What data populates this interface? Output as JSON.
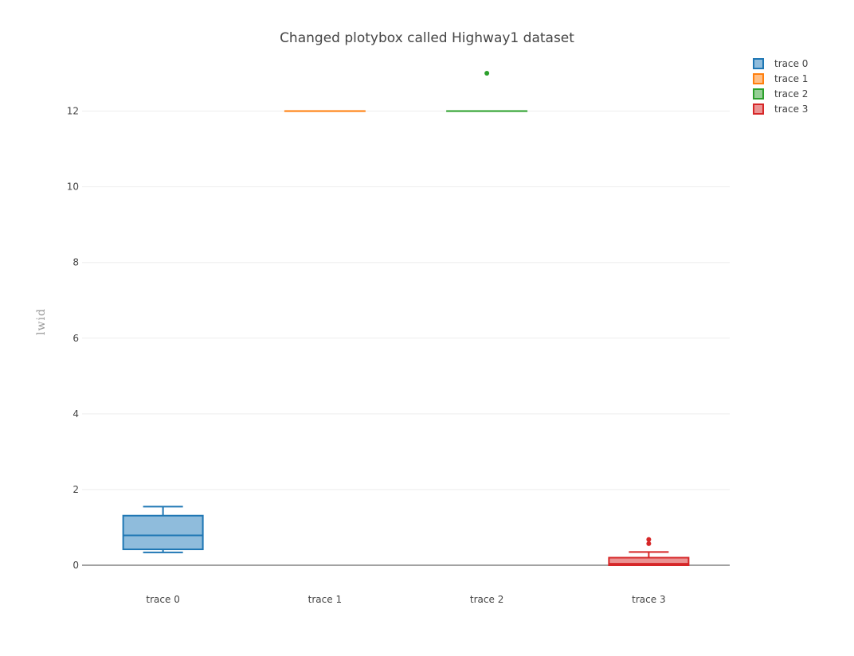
{
  "chart_data": {
    "type": "box",
    "title": "Changed plotybox called Highway1 dataset",
    "ylabel": "lwid",
    "xlabel": "",
    "ylim": [
      0,
      13.4
    ],
    "yticks": [
      0,
      2,
      4,
      6,
      8,
      10,
      12
    ],
    "grid": true,
    "legend_position": "top-right",
    "categories": [
      "trace 0",
      "trace 1",
      "trace 2",
      "trace 3"
    ],
    "series": [
      {
        "name": "trace 0",
        "color": "#1f77b4",
        "fill": "#8fbcdc",
        "min": 0.34,
        "q1": 0.42,
        "median": 0.79,
        "q3": 1.31,
        "max": 1.55,
        "outliers": []
      },
      {
        "name": "trace 1",
        "color": "#ff7f0e",
        "fill": "#ffbf86",
        "min": 12,
        "q1": 12,
        "median": 12,
        "q3": 12,
        "max": 12,
        "outliers": []
      },
      {
        "name": "trace 2",
        "color": "#2ca02c",
        "fill": "#95cf95",
        "min": 12,
        "q1": 12,
        "median": 12,
        "q3": 12,
        "max": 12,
        "outliers": [
          13
        ]
      },
      {
        "name": "trace 3",
        "color": "#d62728",
        "fill": "#eb9393",
        "min": 0,
        "q1": 0.0,
        "median": 0.04,
        "q3": 0.2,
        "max": 0.35,
        "outliers": [
          0.57,
          0.68
        ]
      }
    ]
  }
}
